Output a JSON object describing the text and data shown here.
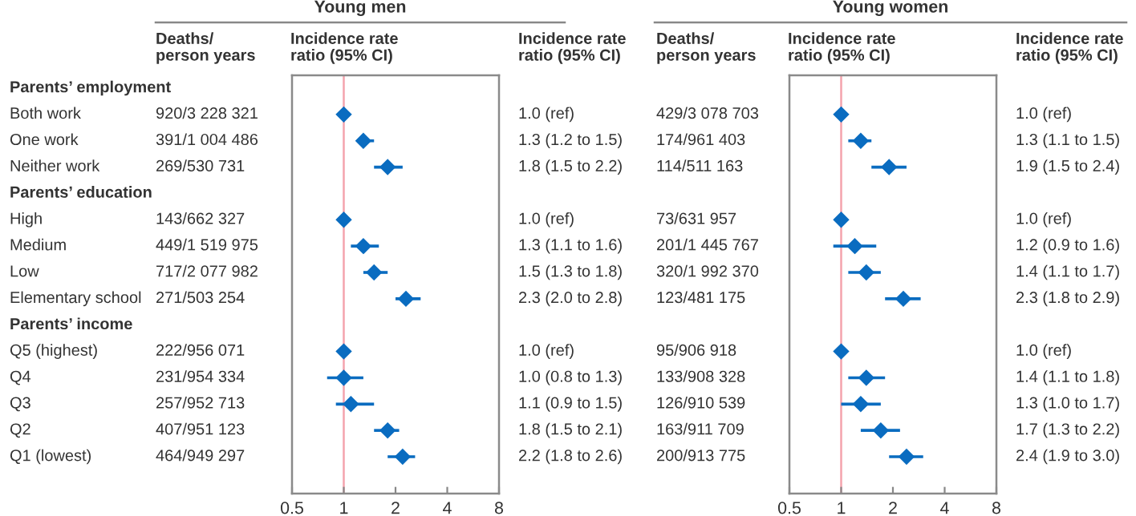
{
  "chart_data": [
    {
      "type": "scatter",
      "orientation": "horizontal",
      "title": "Young men",
      "xlabel": "Incidence rate\nratio (95% CI)",
      "tick_labels": "x",
      "categories": [
        "Parents’ employment",
        "Both work",
        "One work",
        "Neither work",
        "Parents’ education",
        "High",
        "Medium",
        "Low",
        "Elementary school",
        "Parents’ income",
        "Q5 (highest)",
        "Q4",
        "Q3",
        "Q2",
        "Q1 (lowest)"
      ],
      "series": [
        {
          "color": "#0a6cc0",
          "values": [
            null,
            1.0,
            1.3,
            1.8,
            null,
            1.0,
            1.3,
            1.5,
            2.3,
            null,
            1.0,
            1.0,
            1.1,
            1.8,
            2.2
          ],
          "errors": [
            null,
            null,
            [
              1.2,
              1.5
            ],
            [
              1.5,
              2.2
            ],
            null,
            null,
            [
              1.1,
              1.6
            ],
            [
              1.3,
              1.8
            ],
            [
              2.0,
              2.8
            ],
            null,
            null,
            [
              0.8,
              1.3
            ],
            [
              0.9,
              1.5
            ],
            [
              1.5,
              2.1
            ],
            [
              1.8,
              2.6
            ]
          ]
        }
      ],
      "annotations": [
        "Deaths/\nperson years",
        "Incidence rate\nratio (95% CI)",
        "920/3 228 321",
        "391/1 004 486",
        "269/530 731",
        "143/662 327",
        "449/1 519 975",
        "717/2 077 982",
        "271/503 254",
        "222/956 071",
        "231/954 334",
        "257/952 713",
        "407/951 123",
        "464/949 297",
        "1.0 (ref)",
        "1.3 (1.2 to 1.5)",
        "1.8 (1.5 to 2.2)",
        "1.0 (ref)",
        "1.3 (1.1 to 1.6)",
        "1.5 (1.3 to 1.8)",
        "2.3 (2.0 to 2.8)",
        "1.0 (ref)",
        "1.0 (0.8 to 1.3)",
        "1.1 (0.9 to 1.5)",
        "1.8 (1.5 to 2.1)",
        "2.2 (1.8 to 2.6)"
      ],
      "marker": "diamond",
      "log": "x",
      "xlim": [
        0.5,
        8
      ],
      "xticks": [
        0.5,
        1,
        2,
        4,
        8
      ],
      "ref_lines": [
        {
          "axis": "x",
          "value": 1,
          "color": "#f4a3ad"
        }
      ]
    },
    {
      "type": "scatter",
      "orientation": "horizontal",
      "title": "Young women",
      "xlabel": "Incidence rate\nratio (95% CI)",
      "tick_labels": "x",
      "categories": [
        "Parents’ employment",
        "Both work",
        "One work",
        "Neither work",
        "Parents’ education",
        "High",
        "Medium",
        "Low",
        "Elementary school",
        "Parents’ income",
        "Q5 (highest)",
        "Q4",
        "Q3",
        "Q2",
        "Q1 (lowest)"
      ],
      "series": [
        {
          "color": "#0a6cc0",
          "values": [
            null,
            1.0,
            1.3,
            1.9,
            null,
            1.0,
            1.2,
            1.4,
            2.3,
            null,
            1.0,
            1.4,
            1.3,
            1.7,
            2.4
          ],
          "errors": [
            null,
            null,
            [
              1.1,
              1.5
            ],
            [
              1.5,
              2.4
            ],
            null,
            null,
            [
              0.9,
              1.6
            ],
            [
              1.1,
              1.7
            ],
            [
              1.8,
              2.9
            ],
            null,
            null,
            [
              1.1,
              1.8
            ],
            [
              1.0,
              1.7
            ],
            [
              1.3,
              2.2
            ],
            [
              1.9,
              3.0
            ]
          ]
        }
      ],
      "annotations": [
        "Deaths/\nperson years",
        "Incidence rate\nratio (95% CI)",
        "429/3 078 703",
        "174/961 403",
        "114/511 163",
        "73/631 957",
        "201/1 445 767",
        "320/1 992 370",
        "123/481 175",
        "95/906 918",
        "133/908 328",
        "126/910 539",
        "163/911 709",
        "200/913 775",
        "1.0 (ref)",
        "1.3 (1.1 to 1.5)",
        "1.9 (1.5 to 2.4)",
        "1.0 (ref)",
        "1.2 (0.9 to 1.6)",
        "1.4 (1.1 to 1.7)",
        "2.3 (1.8 to 2.9)",
        "1.0 (ref)",
        "1.4 (1.1 to 1.8)",
        "1.3 (1.0 to 1.7)",
        "1.7 (1.3 to 2.2)",
        "2.4 (1.9 to 3.0)"
      ],
      "marker": "diamond",
      "log": "x",
      "xlim": [
        0.5,
        8
      ],
      "xticks": [
        0.5,
        1,
        2,
        4,
        8
      ],
      "ref_lines": [
        {
          "axis": "x",
          "value": 1,
          "color": "#f4a3ad"
        }
      ]
    }
  ]
}
